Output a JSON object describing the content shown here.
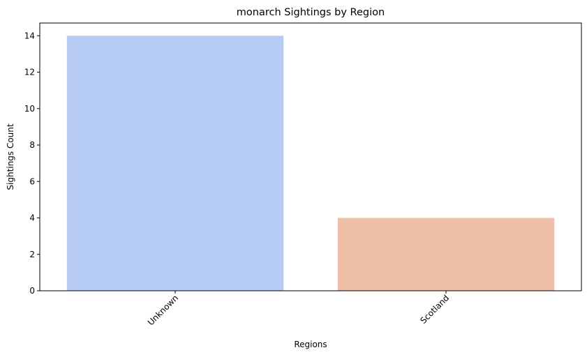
{
  "chart_data": {
    "type": "bar",
    "title": "monarch Sightings by Region",
    "xlabel": "Regions",
    "ylabel": "Sightings Count",
    "categories": [
      "Unknown",
      "Scotland"
    ],
    "values": [
      14,
      4
    ],
    "colors": [
      "#b5cbf4",
      "#eebea6"
    ],
    "ylim": [
      0,
      14.7
    ],
    "yticks": [
      0,
      2,
      4,
      6,
      8,
      10,
      12,
      14
    ],
    "grid": false,
    "x_tick_rotation": -45
  }
}
